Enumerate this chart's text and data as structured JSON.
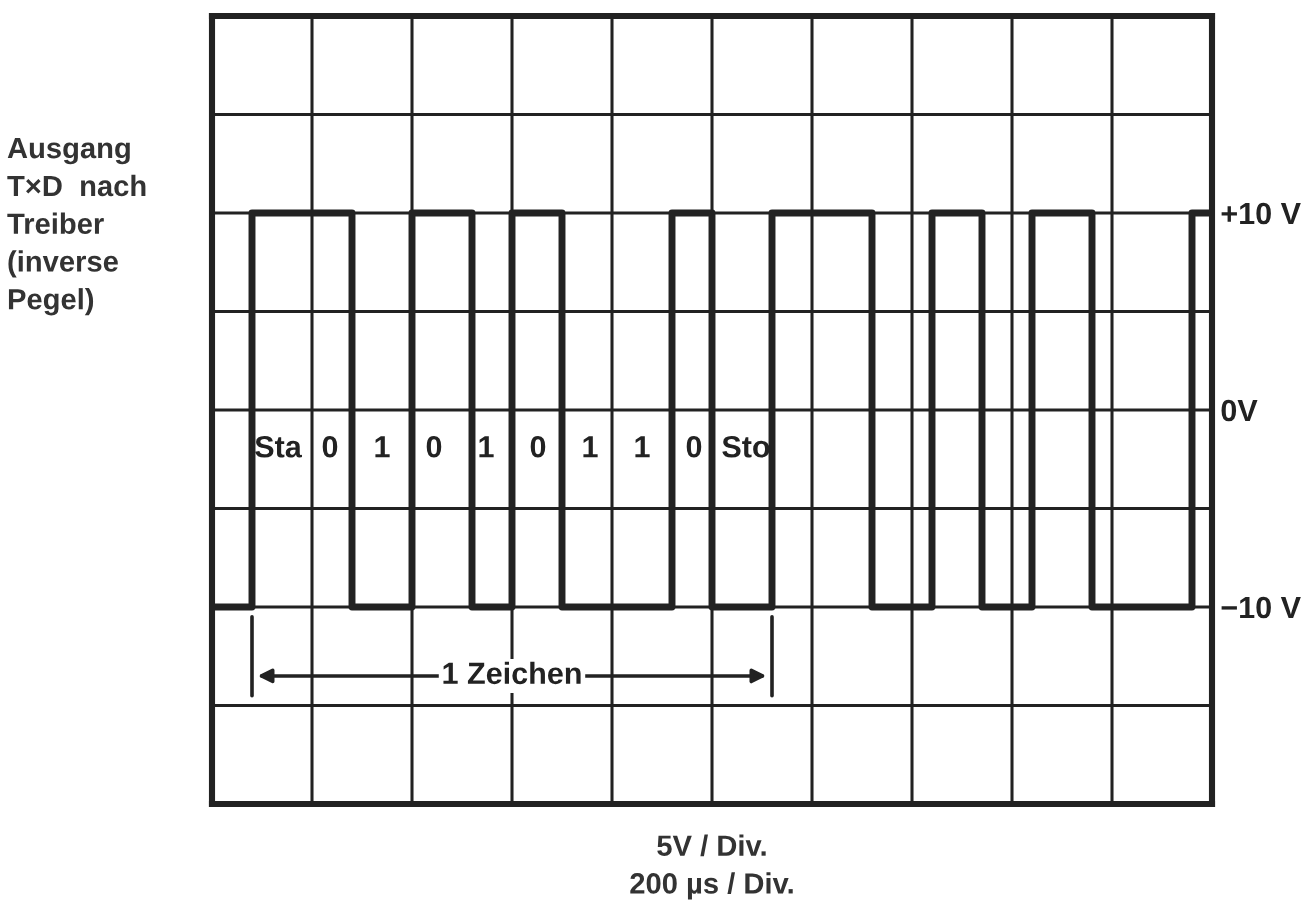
{
  "chart_data": {
    "type": "step",
    "ylabel": "Ausgang\nT×D  nach\nTreiber\n(inverse\nPegel)",
    "xlabel": "5V / Div.\n200 µs / Div.",
    "categories": [
      null,
      null,
      null,
      null,
      null,
      null,
      null,
      null,
      null,
      null,
      null,
      null,
      null,
      null,
      null,
      null,
      null,
      null,
      null,
      null,
      null,
      null,
      null,
      null,
      null,
      null,
      null,
      null,
      null,
      null,
      null,
      null,
      null,
      null,
      null,
      null,
      null,
      null,
      null,
      null,
      null,
      null,
      null,
      null,
      null,
      null,
      null,
      null,
      null,
      null,
      null,
      null,
      null,
      null,
      null,
      null,
      null,
      null,
      null,
      null,
      null,
      null,
      null,
      null,
      null,
      null,
      null,
      null,
      null,
      null,
      null,
      null,
      null,
      null,
      null,
      null,
      null,
      null,
      null,
      null,
      null,
      null,
      null,
      null,
      null,
      null,
      null,
      null,
      null,
      null,
      null,
      null,
      null,
      null,
      null,
      null,
      null,
      null,
      null,
      null,
      null
    ],
    "series": [
      {
        "color": "#222222",
        "values": [
          -10,
          -10,
          -10,
          -10,
          10,
          10,
          10,
          10,
          10,
          10,
          10,
          10,
          10,
          10,
          -10,
          -10,
          -10,
          -10,
          -10,
          -10,
          10,
          10,
          10,
          10,
          10,
          10,
          -10,
          -10,
          -10,
          -10,
          10,
          10,
          10,
          10,
          10,
          -10,
          -10,
          -10,
          -10,
          -10,
          -10,
          -10,
          -10,
          -10,
          -10,
          -10,
          10,
          10,
          10,
          10,
          -10,
          -10,
          -10,
          -10,
          -10,
          -10,
          10,
          10,
          10,
          10,
          10,
          10,
          10,
          10,
          10,
          10,
          -10,
          -10,
          -10,
          -10,
          -10,
          -10,
          10,
          10,
          10,
          10,
          10,
          -10,
          -10,
          -10,
          -10,
          -10,
          10,
          10,
          10,
          10,
          10,
          10,
          -10,
          -10,
          -10,
          -10,
          -10,
          -10,
          -10,
          -10,
          -10,
          -10,
          10,
          10,
          10
        ]
      }
    ],
    "ylim": [
      -20,
      20
    ],
    "yticks": [
      {
        "value": -15,
        "label": null
      },
      {
        "value": -10,
        "label": "−10 V"
      },
      {
        "value": -5,
        "label": null
      },
      {
        "value": 0,
        "label": "0V"
      },
      {
        "value": 5,
        "label": null
      },
      {
        "value": 10,
        "label": "+10 V"
      },
      {
        "value": 15,
        "label": null
      }
    ],
    "grid": true,
    "line_style": "solid",
    "marker": "none",
    "annotations": [
      "Sta",
      "0",
      "1",
      "0",
      "1",
      "0",
      "1",
      "1",
      "0",
      "Sto",
      "1 Zeichen"
    ]
  }
}
